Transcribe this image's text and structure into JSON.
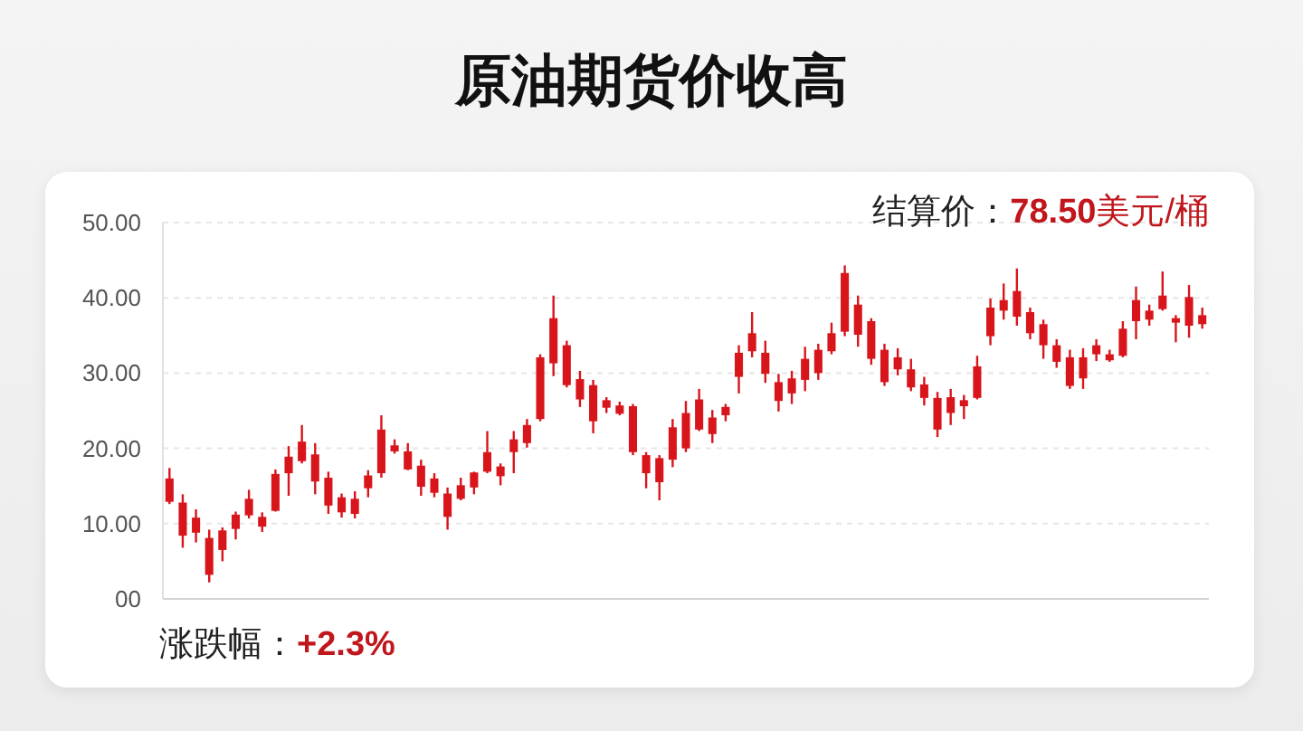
{
  "chart_data": {
    "type": "candlestick",
    "title": "原油期货价收高",
    "annotations": [
      "结算价：78.50美元/桶",
      "涨跌幅：+2.3%"
    ],
    "color": "#d8151b",
    "ylim": [
      0,
      50
    ],
    "yticks": [
      {
        "value": 0,
        "label": "00"
      },
      {
        "value": 10,
        "label": "10.00"
      },
      {
        "value": 20,
        "label": "20.00"
      },
      {
        "value": 30,
        "label": "30.00"
      },
      {
        "value": 40,
        "label": "40.00"
      },
      {
        "value": 50,
        "label": "50.00"
      }
    ],
    "grid": "y",
    "categories": [
      null,
      null,
      null,
      null,
      null,
      null,
      null,
      null,
      null,
      null,
      null,
      null,
      null,
      null,
      null,
      null,
      null,
      null,
      null,
      null,
      null,
      null,
      null,
      null,
      null,
      null,
      null,
      null,
      null,
      null,
      null,
      null,
      null,
      null,
      null,
      null,
      null,
      null,
      null,
      null,
      null,
      null,
      null,
      null,
      null,
      null,
      null,
      null,
      null,
      null,
      null,
      null,
      null,
      null,
      null,
      null,
      null,
      null,
      null,
      null,
      null,
      null,
      null,
      null,
      null,
      null,
      null,
      null,
      null,
      null,
      null,
      null,
      null,
      null,
      null,
      null,
      null,
      null,
      null
    ],
    "ohlc": [
      [
        12.9,
        17.4,
        12.6,
        16.0
      ],
      [
        8.4,
        13.9,
        6.8,
        12.8
      ],
      [
        8.8,
        11.9,
        7.5,
        10.8
      ],
      [
        3.2,
        9.2,
        2.2,
        8.1
      ],
      [
        6.5,
        9.5,
        5.0,
        9.1
      ],
      [
        9.3,
        11.6,
        7.9,
        11.2
      ],
      [
        11.1,
        14.5,
        10.7,
        13.3
      ],
      [
        9.6,
        11.5,
        8.9,
        10.9
      ],
      [
        11.7,
        17.2,
        11.6,
        16.6
      ],
      [
        16.7,
        20.3,
        13.7,
        18.9
      ],
      [
        18.3,
        23.1,
        18.0,
        20.9
      ],
      [
        15.6,
        20.7,
        13.9,
        19.2
      ],
      [
        12.4,
        16.9,
        11.3,
        16.1
      ],
      [
        11.5,
        14.0,
        10.8,
        13.5
      ],
      [
        11.3,
        14.3,
        10.7,
        13.3
      ],
      [
        14.7,
        17.1,
        13.5,
        16.4
      ],
      [
        16.7,
        24.4,
        16.1,
        22.5
      ],
      [
        19.6,
        21.2,
        19.3,
        20.4
      ],
      [
        17.2,
        20.7,
        17.1,
        19.6
      ],
      [
        14.9,
        18.5,
        13.7,
        17.7
      ],
      [
        14.1,
        16.7,
        13.5,
        16.0
      ],
      [
        10.9,
        14.8,
        9.2,
        14.0
      ],
      [
        13.3,
        16.1,
        13.1,
        15.1
      ],
      [
        14.8,
        16.9,
        13.9,
        16.8
      ],
      [
        16.9,
        22.3,
        16.7,
        19.5
      ],
      [
        16.3,
        18.0,
        15.1,
        17.6
      ],
      [
        19.5,
        22.3,
        16.7,
        21.2
      ],
      [
        20.7,
        23.9,
        20.1,
        23.1
      ],
      [
        23.9,
        32.5,
        23.6,
        32.1
      ],
      [
        31.3,
        40.3,
        29.6,
        37.3
      ],
      [
        28.4,
        34.3,
        28.1,
        33.7
      ],
      [
        26.5,
        30.3,
        25.5,
        29.2
      ],
      [
        23.6,
        29.1,
        22.0,
        28.4
      ],
      [
        25.4,
        26.8,
        24.7,
        26.4
      ],
      [
        24.6,
        26.2,
        24.4,
        25.7
      ],
      [
        19.5,
        25.9,
        19.1,
        25.6
      ],
      [
        16.7,
        19.5,
        14.7,
        19.1
      ],
      [
        15.5,
        19.1,
        13.1,
        18.7
      ],
      [
        18.5,
        23.9,
        17.5,
        22.8
      ],
      [
        20.0,
        26.3,
        19.5,
        24.7
      ],
      [
        22.5,
        27.9,
        22.3,
        26.5
      ],
      [
        21.9,
        25.1,
        20.7,
        24.1
      ],
      [
        24.4,
        25.9,
        23.6,
        25.5
      ],
      [
        29.5,
        33.7,
        27.3,
        32.7
      ],
      [
        32.9,
        38.1,
        32.1,
        35.3
      ],
      [
        29.9,
        34.3,
        28.7,
        32.7
      ],
      [
        26.3,
        29.9,
        24.9,
        28.8
      ],
      [
        27.3,
        30.3,
        25.9,
        29.3
      ],
      [
        29.1,
        33.5,
        27.6,
        31.9
      ],
      [
        30.0,
        33.9,
        29.1,
        33.1
      ],
      [
        32.9,
        36.7,
        32.5,
        35.3
      ],
      [
        35.5,
        44.3,
        34.9,
        43.3
      ],
      [
        35.1,
        40.3,
        33.5,
        39.1
      ],
      [
        31.9,
        37.3,
        31.1,
        36.9
      ],
      [
        28.8,
        33.9,
        28.3,
        33.1
      ],
      [
        30.5,
        33.3,
        29.7,
        32.1
      ],
      [
        28.1,
        31.9,
        27.6,
        30.5
      ],
      [
        26.7,
        29.5,
        25.7,
        28.5
      ],
      [
        22.5,
        27.5,
        21.5,
        26.7
      ],
      [
        24.7,
        27.9,
        23.1,
        26.8
      ],
      [
        25.6,
        27.1,
        23.9,
        26.4
      ],
      [
        26.7,
        32.3,
        26.5,
        30.9
      ],
      [
        34.9,
        39.9,
        33.7,
        38.7
      ],
      [
        38.3,
        41.9,
        37.1,
        39.7
      ],
      [
        37.5,
        43.9,
        36.3,
        40.9
      ],
      [
        35.3,
        38.7,
        34.5,
        38.1
      ],
      [
        33.7,
        37.1,
        31.9,
        36.5
      ],
      [
        31.5,
        34.5,
        30.7,
        33.7
      ],
      [
        28.3,
        33.1,
        27.9,
        32.1
      ],
      [
        29.3,
        33.3,
        27.9,
        32.1
      ],
      [
        32.5,
        34.5,
        31.6,
        33.7
      ],
      [
        31.7,
        33.1,
        31.5,
        32.5
      ],
      [
        32.3,
        36.9,
        32.1,
        35.9
      ],
      [
        36.9,
        41.5,
        34.5,
        39.7
      ],
      [
        37.1,
        39.1,
        36.3,
        38.3
      ],
      [
        38.5,
        43.5,
        38.3,
        40.3
      ],
      [
        36.7,
        37.7,
        34.1,
        37.3
      ],
      [
        36.3,
        41.7,
        34.7,
        40.1
      ],
      [
        36.5,
        38.7,
        35.9,
        37.7
      ]
    ]
  }
}
